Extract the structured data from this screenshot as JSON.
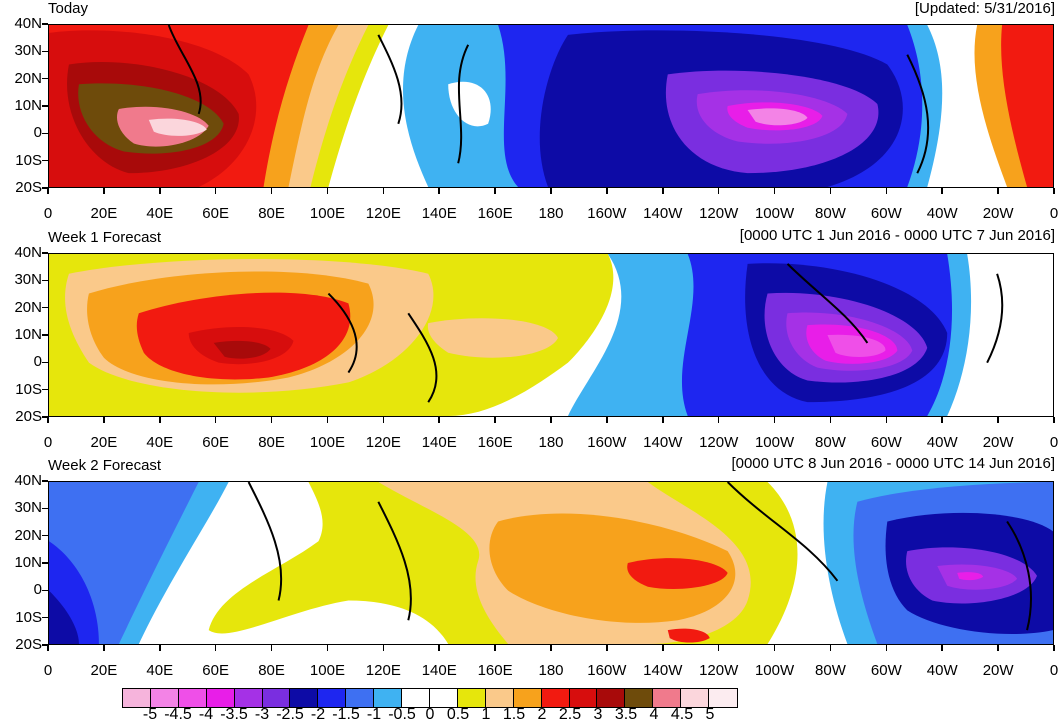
{
  "header": {
    "title_today": "Today",
    "updated": "[Updated: 5/31/2016]"
  },
  "panels": [
    {
      "title": "Today",
      "range": ""
    },
    {
      "title": "Week 1 Forecast",
      "range": "[0000 UTC 1 Jun 2016 - 0000 UTC 7 Jun 2016]"
    },
    {
      "title": "Week 2 Forecast",
      "range": "[0000 UTC 8 Jun 2016 - 0000 UTC 14 Jun 2016]"
    }
  ],
  "latitude_labels": [
    "40N",
    "30N",
    "20N",
    "10N",
    "0",
    "10S",
    "20S"
  ],
  "longitude_labels_week0": [
    "0",
    "20E",
    "40E",
    "60E",
    "80E",
    "100E",
    "120E",
    "140E",
    "160E",
    "180",
    "160W",
    "140W",
    "120W",
    "100W",
    "80W",
    "60W",
    "40W",
    "20W",
    "0"
  ],
  "longitude_labels_week1": [
    "0",
    "20E",
    "40E",
    "60E",
    "80E",
    "100E",
    "120E",
    "140E",
    "160E",
    "180",
    "160W",
    "140W",
    "120W",
    "100W",
    "80W",
    "60W",
    "40W",
    "20W",
    "0"
  ],
  "longitude_labels_week2": [
    "0",
    "20E",
    "40E",
    "60E",
    "80E",
    "100E",
    "120E",
    "140E",
    "160E",
    "180",
    "160W",
    "140W",
    "120W",
    "100W",
    "80W",
    "60W",
    "40W",
    "20W",
    "0"
  ],
  "colorbar": {
    "labels": [
      "-5",
      "-4.5",
      "-4",
      "-3.5",
      "-3",
      "-2.5",
      "-2",
      "-1.5",
      "-1",
      "-0.5",
      "0",
      "0.5",
      "1",
      "1.5",
      "2",
      "2.5",
      "3",
      "3.5",
      "4",
      "4.5",
      "5"
    ],
    "colors": [
      "#f6b4dc",
      "#f383e6",
      "#ef4fe8",
      "#e81ee8",
      "#a531e6",
      "#7a2ee0",
      "#0d0ba6",
      "#1e26f0",
      "#3e70f2",
      "#3fb2f2",
      "#ffffff",
      "#ffffff",
      "#e6e60c",
      "#fac98a",
      "#f7a21c",
      "#f21a10",
      "#d70d0d",
      "#a80a0a",
      "#6e4b0b",
      "#f07a8c",
      "#fbd6dc",
      "#fcecf0"
    ]
  },
  "palette": {
    "neg5": "#f6b4dc",
    "neg45": "#f383e6",
    "neg4": "#ef4fe8",
    "neg35": "#e81ee8",
    "neg3": "#a531e6",
    "neg25": "#7a2ee0",
    "neg2": "#0d0ba6",
    "neg15": "#1e26f0",
    "neg1": "#3e70f2",
    "neg05": "#3fb2f2",
    "zero": "#ffffff",
    "pos05": "#e6e60c",
    "pos1": "#fac98a",
    "pos15": "#f7a21c",
    "pos2": "#f21a10",
    "pos25": "#d70d0d",
    "pos3": "#a80a0a",
    "pos35": "#6e4b0b",
    "pos4": "#f07a8c"
  }
}
